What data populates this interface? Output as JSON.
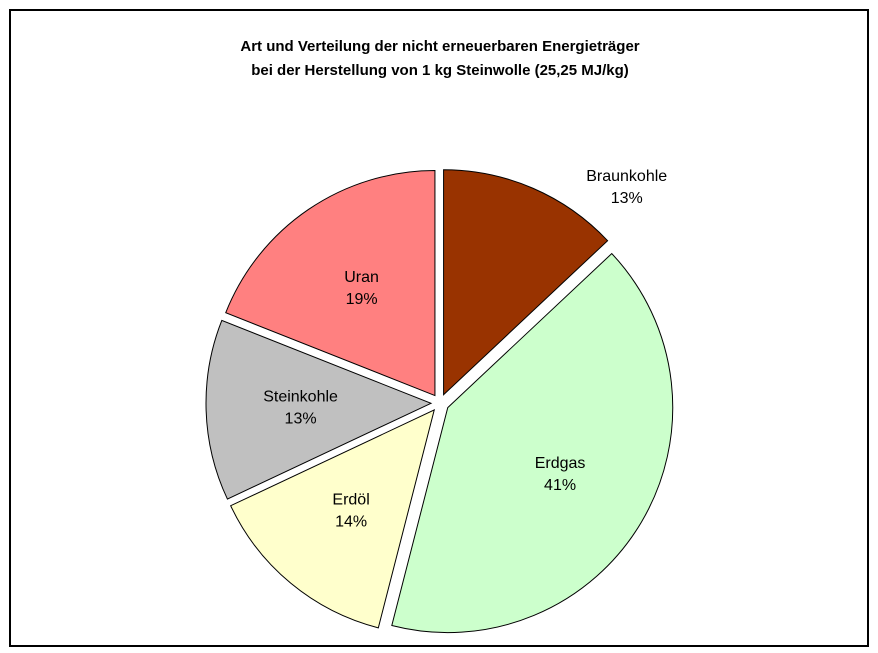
{
  "chart_data": {
    "type": "pie",
    "title": [
      "Art und Verteilung der nicht erneuerbaren Energieträger",
      "bei der Herstellung von 1 kg Steinwolle (25,25 MJ/kg)"
    ],
    "categories": [
      "Braunkohle",
      "Erdgas",
      "Erdöl",
      "Steinkohle",
      "Uran"
    ],
    "values": [
      13,
      41,
      14,
      13,
      19
    ],
    "value_labels": [
      "13%",
      "41%",
      "14%",
      "13%",
      "19%"
    ],
    "colors": [
      "#993300",
      "#ccffcc",
      "#ffffcc",
      "#c0c0c0",
      "#ff8080"
    ]
  }
}
